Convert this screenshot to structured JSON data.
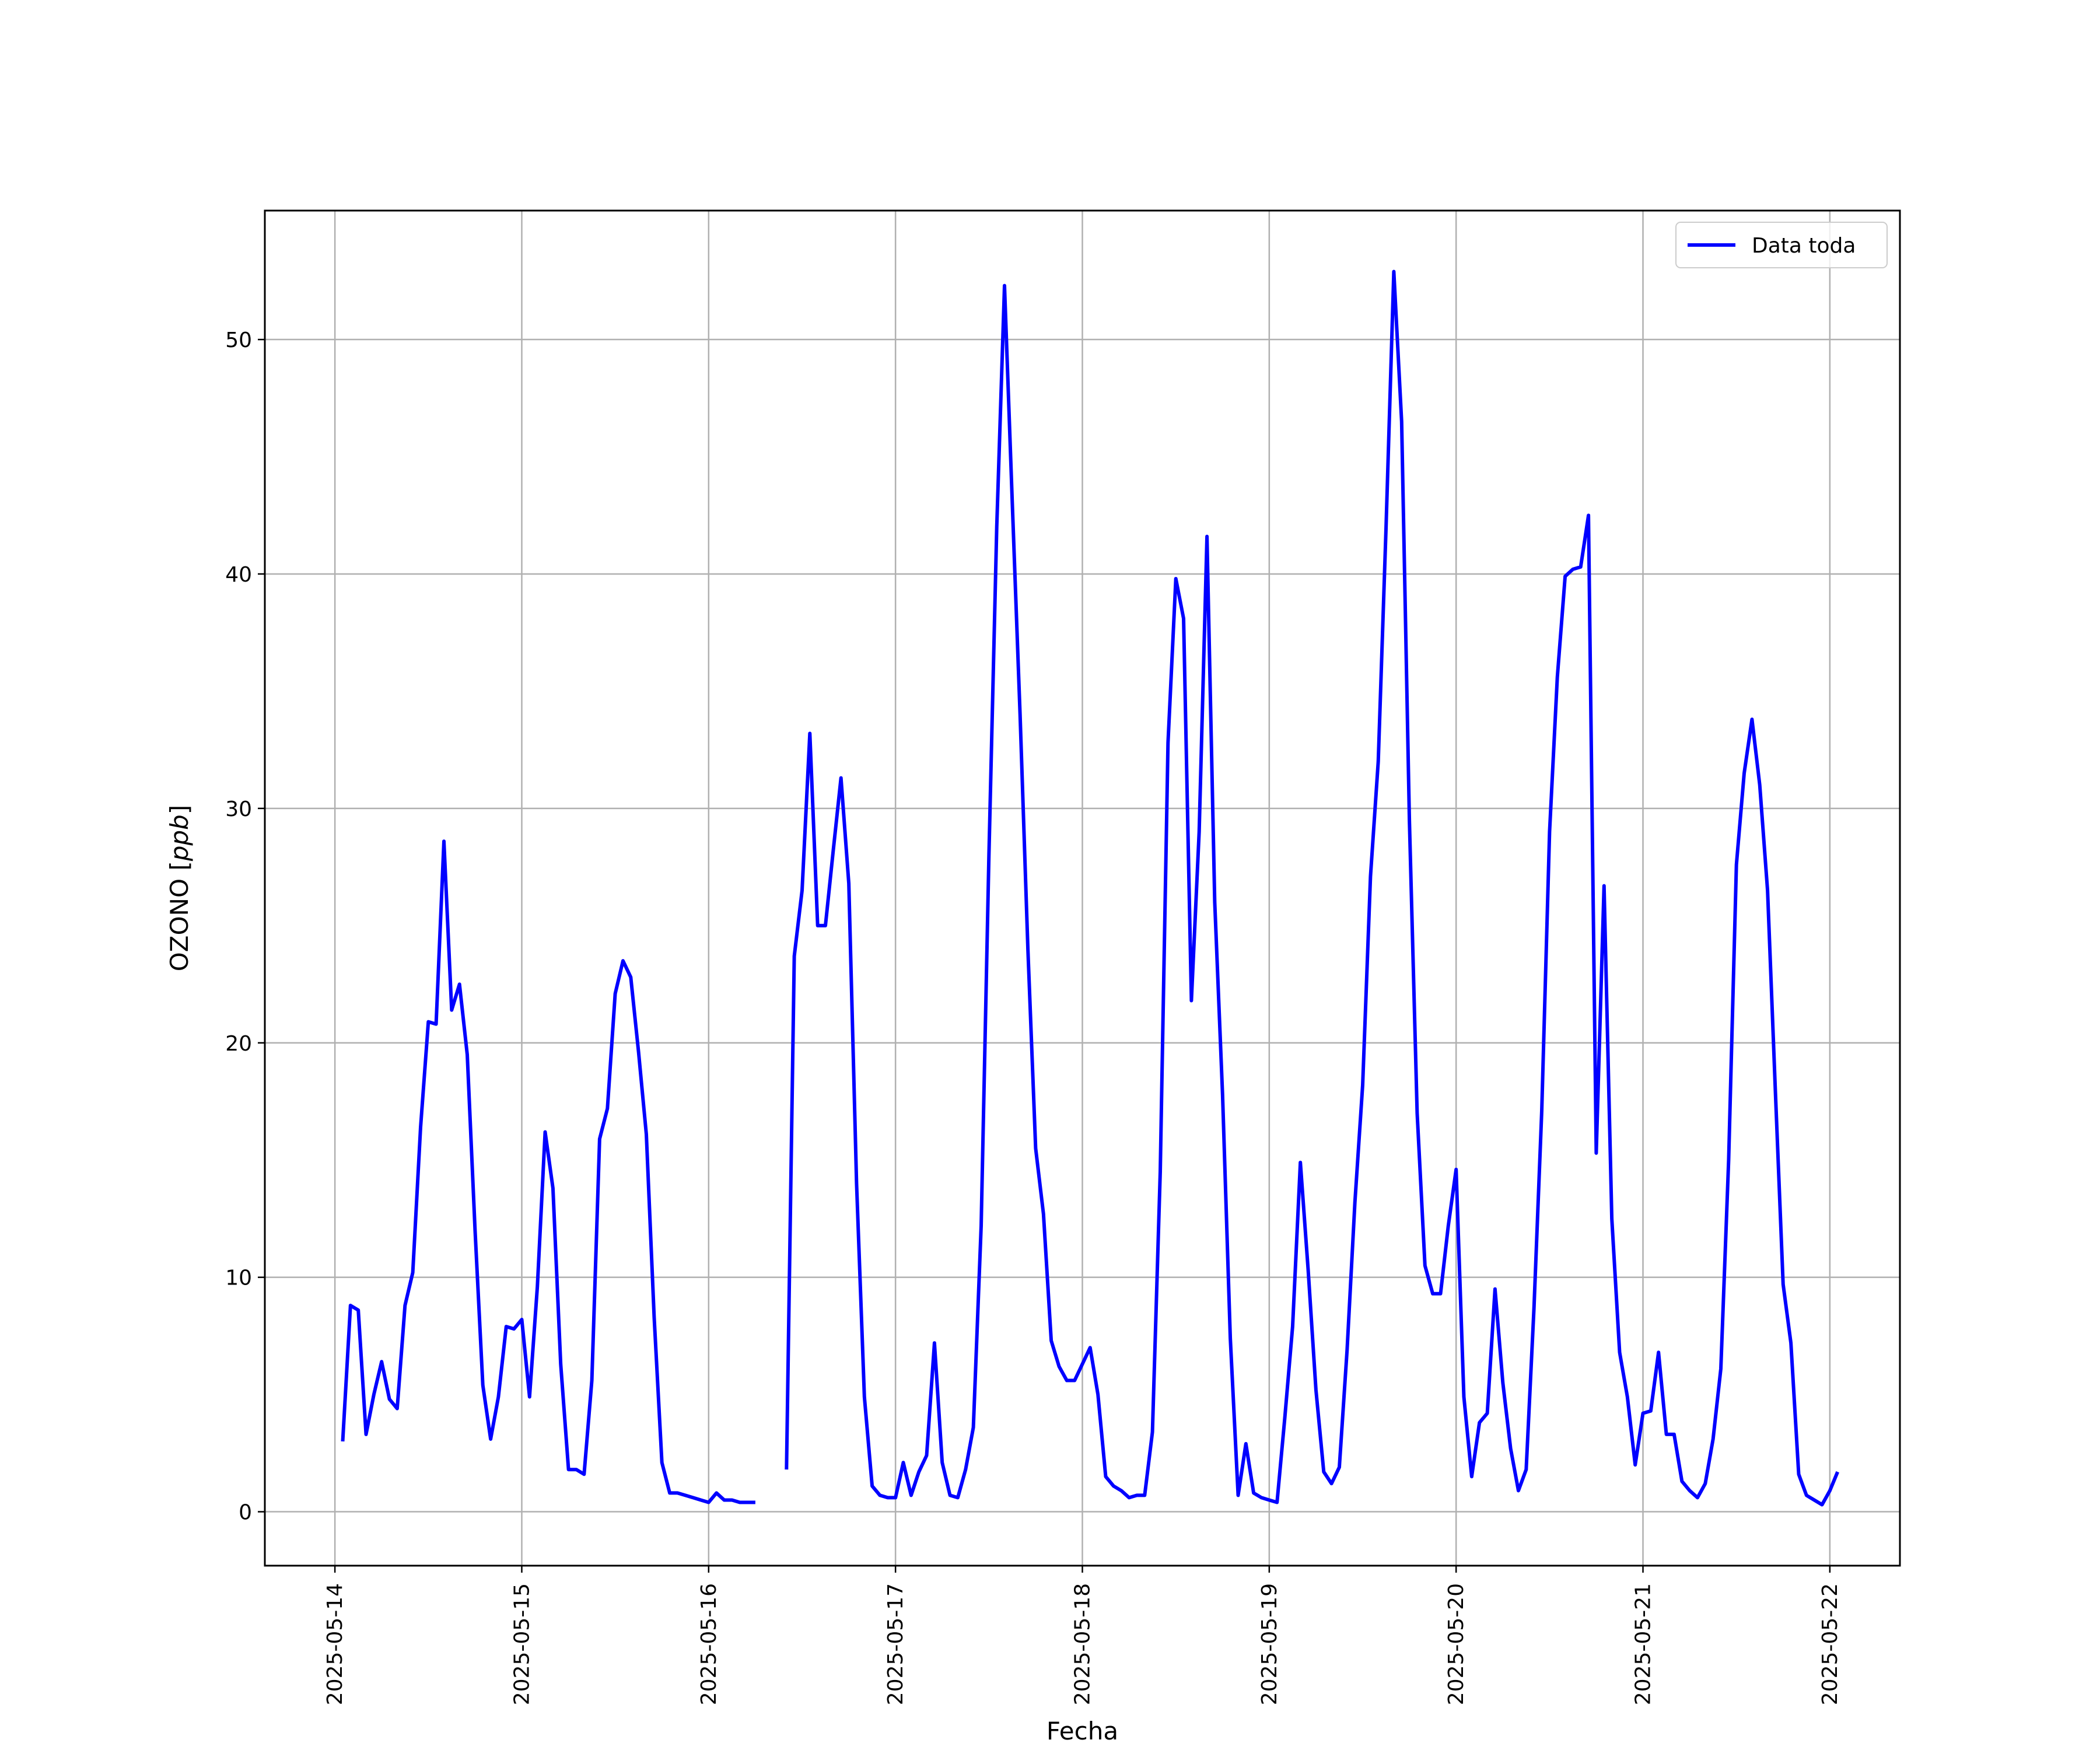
{
  "chart_data": {
    "type": "line",
    "xlabel": "Fecha",
    "ylabel": "OZONO [ppb]",
    "ylabel_parts": {
      "prefix": "OZONO [",
      "unit": "ppb",
      "suffix": "]"
    },
    "x_ticks": [
      "2025-05-14",
      "2025-05-15",
      "2025-05-16",
      "2025-05-17",
      "2025-05-18",
      "2025-05-19",
      "2025-05-20",
      "2025-05-21",
      "2025-05-22"
    ],
    "y_ticks": [
      0,
      10,
      20,
      30,
      40,
      50
    ],
    "xlim": [
      "2025-05-13T15:00",
      "2025-05-22T09:00"
    ],
    "ylim": [
      -2.3,
      55.5
    ],
    "grid": true,
    "legend": {
      "entries": [
        "Data toda"
      ],
      "position": "upper right"
    },
    "colors": {
      "series": "#0000ff",
      "grid": "#b0b0b0",
      "frame": "#000000"
    },
    "series": [
      {
        "name": "Data toda",
        "x_start": "2025-05-14T01:00",
        "interval_hours": 1,
        "values": [
          3.0,
          8.8,
          8.6,
          3.3,
          5.0,
          6.4,
          4.8,
          4.4,
          8.8,
          10.2,
          16.4,
          20.9,
          20.8,
          28.6,
          21.4,
          22.5,
          19.5,
          12.0,
          5.4,
          3.1,
          4.9,
          7.9,
          7.8,
          8.2,
          4.9,
          9.6,
          16.2,
          13.8,
          6.3,
          1.8,
          1.8,
          1.6,
          5.6,
          15.9,
          17.2,
          22.1,
          23.5,
          22.8,
          19.6,
          16.1,
          8.3,
          2.1,
          0.8,
          0.8,
          0.7,
          0.6,
          0.5,
          0.4,
          0.8,
          0.5,
          0.5,
          0.4,
          0.4,
          0.4,
          null,
          null,
          null,
          1.8,
          23.7,
          26.5,
          33.2,
          25.0,
          25.0,
          28.2,
          31.3,
          26.8,
          14.0,
          4.9,
          1.1,
          0.7,
          0.6,
          0.6,
          2.1,
          0.7,
          1.7,
          2.4,
          7.2,
          2.1,
          0.7,
          0.6,
          1.8,
          3.6,
          12.2,
          28.0,
          42.0,
          52.3,
          43.0,
          34.0,
          24.0,
          15.5,
          12.7,
          7.3,
          6.2,
          5.6,
          5.6,
          6.3,
          7.0,
          5.0,
          1.5,
          1.1,
          0.9,
          0.6,
          0.7,
          0.7,
          3.4,
          14.5,
          32.8,
          39.8,
          38.1,
          21.8,
          29.0,
          41.6,
          26.0,
          17.8,
          7.4,
          0.7,
          2.9,
          0.8,
          0.6,
          0.5,
          0.4,
          4.0,
          7.9,
          14.9,
          10.3,
          5.2,
          1.7,
          1.2,
          1.9,
          6.9,
          13.2,
          18.2,
          27.1,
          32.0,
          42.0,
          52.9,
          46.5,
          29.5,
          17.0,
          10.5,
          9.3,
          9.3,
          12.2,
          14.6,
          4.9,
          1.5,
          3.8,
          4.2,
          9.5,
          5.5,
          2.7,
          0.9,
          1.8,
          8.7,
          17.1,
          29.0,
          35.6,
          39.9,
          40.2,
          40.3,
          42.5,
          15.3,
          26.7,
          12.5,
          6.8,
          4.9,
          2.0,
          4.2,
          4.3,
          6.8,
          3.3,
          3.3,
          1.3,
          0.9,
          0.6,
          1.2,
          3.1,
          6.1,
          15.0,
          27.6,
          31.5,
          33.8,
          31.0,
          26.5,
          18.0,
          9.7,
          7.2,
          1.6,
          0.7,
          0.5,
          0.3,
          0.9,
          1.7
        ]
      }
    ]
  }
}
